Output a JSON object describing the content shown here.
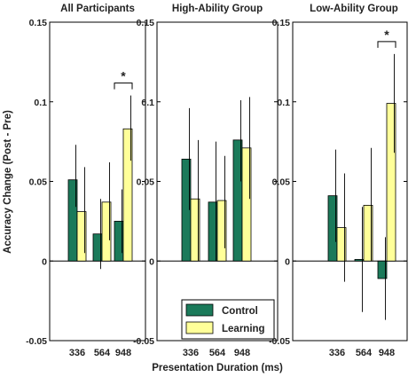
{
  "chart_data": {
    "type": "bar",
    "ylabel": "Accuracy Change (Post - Pre)",
    "xlabel": "Presentation Duration (ms)",
    "ylim": [
      -0.05,
      0.15
    ],
    "yticks": [
      -0.05,
      0,
      0.05,
      0.1,
      0.15
    ],
    "ytick_labels": [
      "-0.05",
      "0",
      "0.05",
      "0.1",
      "0.15"
    ],
    "categories": [
      "336",
      "564",
      "948"
    ],
    "legend": {
      "placement": "bottom-center of middle panel",
      "entries": [
        "Control",
        "Learning"
      ]
    },
    "colors": {
      "control": "#1b7a5a",
      "learning": "#ffff99"
    },
    "grid": false,
    "panels": [
      {
        "title": "All Participants",
        "series": [
          {
            "name": "Control",
            "values": [
              0.051,
              0.017,
              0.025
            ],
            "err_low": [
              0.034,
              -0.005,
              0.005
            ],
            "err_high": [
              0.073,
              0.039,
              0.045
            ]
          },
          {
            "name": "Learning",
            "values": [
              0.031,
              0.037,
              0.083
            ],
            "err_low": [
              0.005,
              0.013,
              0.063
            ],
            "err_high": [
              0.059,
              0.062,
              0.104
            ]
          }
        ],
        "significance": {
          "label": "*",
          "category_index": 2
        }
      },
      {
        "title": "High-Ability Group",
        "series": [
          {
            "name": "Control",
            "values": [
              0.064,
              0.037,
              0.076
            ],
            "err_low": [
              0.032,
              0.0,
              0.05
            ],
            "err_high": [
              0.096,
              0.075,
              0.101
            ]
          },
          {
            "name": "Learning",
            "values": [
              0.039,
              0.038,
              0.071
            ],
            "err_low": [
              0.0,
              0.008,
              0.039
            ],
            "err_high": [
              0.076,
              0.066,
              0.103
            ]
          }
        ]
      },
      {
        "title": "Low-Ability Group",
        "series": [
          {
            "name": "Control",
            "values": [
              0.041,
              0.001,
              -0.011
            ],
            "err_low": [
              0.012,
              -0.032,
              -0.037
            ],
            "err_high": [
              0.07,
              0.034,
              0.015
            ]
          },
          {
            "name": "Learning",
            "values": [
              0.021,
              0.035,
              0.099
            ],
            "err_low": [
              -0.013,
              0.0,
              0.068
            ],
            "err_high": [
              0.055,
              0.071,
              0.13
            ]
          }
        ],
        "significance": {
          "label": "*",
          "category_index": 2
        }
      }
    ]
  }
}
